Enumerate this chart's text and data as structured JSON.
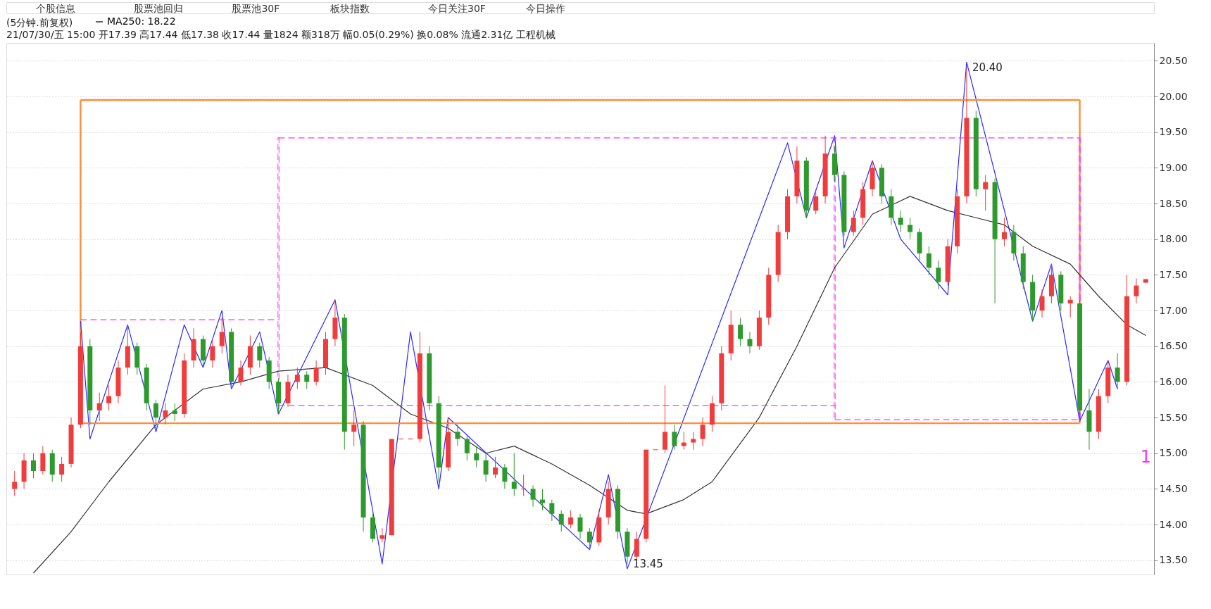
{
  "chart_data": {
    "type": "candlestick",
    "title": "(5分钟.前复权)",
    "subtitle": "21/07/30/五 15:00 开17.39 高17.44 低17.38 收17.44 量1824 额318万 幅0.05(0.29%) 换0.08% 流通2.31亿 工程机械",
    "annotations": [
      "个股信息",
      "股票池回归",
      "股票池30F",
      "板块指数",
      "今日关注30F",
      "今日操作",
      "20.40",
      "13.45",
      "1"
    ],
    "categories": [
      null,
      null,
      null,
      null,
      null,
      null,
      null,
      null,
      null,
      null,
      null,
      null,
      null,
      null,
      null,
      null,
      null,
      null,
      null,
      null,
      null,
      null,
      null,
      null,
      null,
      null,
      null,
      null,
      null,
      null,
      null,
      null,
      null,
      null,
      null,
      null,
      null,
      null,
      null,
      null,
      null,
      null,
      null,
      null,
      null,
      null,
      null,
      null,
      null,
      null,
      null,
      null,
      null,
      null,
      null,
      null,
      null,
      null,
      null,
      null,
      null,
      null,
      null,
      null,
      null,
      null,
      null,
      null,
      null,
      null,
      null,
      null,
      null,
      null,
      null,
      null,
      null,
      null,
      null,
      null,
      null,
      null,
      null,
      null,
      null,
      null,
      null,
      null,
      null,
      null,
      null,
      null,
      null,
      null,
      null,
      null,
      null,
      null,
      null,
      null,
      null,
      null,
      null,
      null,
      null,
      null,
      null,
      null,
      null,
      null,
      null,
      null,
      null,
      null,
      null,
      null,
      null,
      null,
      null,
      null,
      null
    ],
    "ohlc": [
      [
        14.5,
        14.75,
        14.4,
        14.6
      ],
      [
        14.6,
        15.0,
        14.5,
        14.9
      ],
      [
        14.9,
        15.0,
        14.65,
        14.75
      ],
      [
        14.75,
        15.1,
        14.7,
        15.0
      ],
      [
        15.0,
        15.05,
        14.6,
        14.7
      ],
      [
        14.7,
        14.95,
        14.6,
        14.85
      ],
      [
        14.85,
        15.5,
        14.8,
        15.4
      ],
      [
        15.4,
        16.7,
        15.35,
        16.5
      ],
      [
        16.5,
        16.6,
        15.4,
        15.6
      ],
      [
        15.6,
        15.85,
        15.45,
        15.7
      ],
      [
        15.7,
        15.95,
        15.6,
        15.8
      ],
      [
        15.8,
        16.3,
        15.7,
        16.2
      ],
      [
        16.2,
        16.8,
        16.1,
        16.5
      ],
      [
        16.5,
        16.55,
        16.1,
        16.2
      ],
      [
        16.2,
        16.25,
        15.6,
        15.7
      ],
      [
        15.7,
        15.75,
        15.35,
        15.5
      ],
      [
        15.5,
        15.7,
        15.4,
        15.6
      ],
      [
        15.6,
        15.7,
        15.45,
        15.55
      ],
      [
        15.55,
        16.4,
        15.5,
        16.3
      ],
      [
        16.3,
        16.75,
        16.2,
        16.6
      ],
      [
        16.6,
        16.65,
        16.2,
        16.3
      ],
      [
        16.3,
        16.6,
        16.2,
        16.5
      ],
      [
        16.5,
        16.9,
        16.4,
        16.7
      ],
      [
        16.7,
        16.75,
        15.9,
        16.0
      ],
      [
        16.0,
        16.3,
        15.95,
        16.2
      ],
      [
        16.2,
        16.65,
        16.1,
        16.5
      ],
      [
        16.5,
        16.55,
        16.2,
        16.3
      ],
      [
        16.3,
        16.35,
        15.9,
        16.0
      ],
      [
        16.0,
        16.05,
        15.55,
        15.7
      ],
      [
        15.7,
        16.1,
        15.65,
        16.0
      ],
      [
        16.0,
        16.2,
        15.9,
        16.1
      ],
      [
        16.1,
        16.15,
        15.9,
        16.0
      ],
      [
        16.0,
        16.3,
        15.95,
        16.2
      ],
      [
        16.2,
        16.7,
        16.1,
        16.6
      ],
      [
        16.6,
        17.15,
        16.5,
        16.9
      ],
      [
        16.9,
        16.95,
        15.05,
        15.3
      ],
      [
        15.3,
        15.6,
        15.1,
        15.4
      ],
      [
        15.4,
        15.45,
        13.9,
        14.1
      ],
      [
        14.1,
        14.15,
        13.75,
        13.8
      ],
      [
        13.8,
        13.95,
        13.75,
        13.85
      ],
      [
        13.85,
        15.2,
        13.85,
        15.2
      ],
      [
        15.2,
        15.2,
        15.2,
        15.2
      ],
      [
        15.2,
        15.2,
        15.2,
        15.2
      ],
      [
        15.2,
        16.7,
        15.15,
        16.4
      ],
      [
        16.4,
        16.5,
        15.6,
        15.7
      ],
      [
        15.7,
        15.8,
        14.6,
        14.8
      ],
      [
        14.8,
        15.5,
        14.75,
        15.3
      ],
      [
        15.3,
        15.4,
        15.1,
        15.2
      ],
      [
        15.2,
        15.25,
        14.9,
        15.0
      ],
      [
        15.0,
        15.1,
        14.8,
        14.9
      ],
      [
        14.9,
        15.0,
        14.6,
        14.7
      ],
      [
        14.7,
        14.95,
        14.65,
        14.8
      ],
      [
        14.8,
        14.85,
        14.5,
        14.6
      ],
      [
        14.6,
        15.0,
        14.4,
        14.5
      ],
      [
        14.5,
        14.7,
        14.4,
        14.5
      ],
      [
        14.5,
        14.55,
        14.25,
        14.35
      ],
      [
        14.35,
        14.5,
        14.2,
        14.3
      ],
      [
        14.3,
        14.35,
        14.05,
        14.15
      ],
      [
        14.15,
        14.2,
        13.9,
        14.0
      ],
      [
        14.0,
        14.2,
        13.95,
        14.1
      ],
      [
        14.1,
        14.15,
        13.8,
        13.9
      ],
      [
        13.9,
        13.95,
        13.65,
        13.75
      ],
      [
        13.75,
        14.2,
        13.7,
        14.1
      ],
      [
        14.1,
        14.6,
        14.0,
        14.5
      ],
      [
        14.5,
        14.55,
        13.8,
        13.9
      ],
      [
        13.9,
        13.95,
        13.45,
        13.55
      ],
      [
        13.55,
        13.9,
        13.5,
        13.8
      ],
      [
        13.8,
        15.05,
        13.75,
        15.05
      ],
      [
        15.05,
        15.05,
        15.05,
        15.05
      ],
      [
        15.05,
        15.95,
        15.0,
        15.3
      ],
      [
        15.3,
        15.4,
        15.05,
        15.1
      ],
      [
        15.1,
        15.3,
        15.05,
        15.15
      ],
      [
        15.15,
        15.3,
        15.05,
        15.2
      ],
      [
        15.2,
        15.5,
        15.1,
        15.4
      ],
      [
        15.4,
        15.8,
        15.3,
        15.7
      ],
      [
        15.7,
        16.5,
        15.6,
        16.4
      ],
      [
        16.4,
        17.0,
        16.3,
        16.8
      ],
      [
        16.8,
        16.9,
        16.5,
        16.6
      ],
      [
        16.6,
        16.7,
        16.4,
        16.5
      ],
      [
        16.5,
        17.0,
        16.45,
        16.9
      ],
      [
        16.9,
        17.6,
        16.8,
        17.5
      ],
      [
        17.5,
        18.2,
        17.4,
        18.1
      ],
      [
        18.1,
        18.7,
        18.0,
        18.6
      ],
      [
        18.6,
        19.3,
        18.5,
        19.1
      ],
      [
        19.1,
        19.15,
        18.3,
        18.4
      ],
      [
        18.4,
        18.7,
        18.35,
        18.6
      ],
      [
        18.6,
        19.45,
        18.5,
        19.2
      ],
      [
        19.2,
        19.3,
        18.8,
        18.9
      ],
      [
        18.9,
        18.95,
        18.05,
        18.1
      ],
      [
        18.1,
        18.4,
        18.05,
        18.3
      ],
      [
        18.3,
        18.8,
        18.2,
        18.7
      ],
      [
        18.7,
        19.1,
        18.6,
        19.0
      ],
      [
        19.0,
        19.05,
        18.5,
        18.6
      ],
      [
        18.6,
        18.7,
        18.2,
        18.3
      ],
      [
        18.3,
        18.4,
        18.1,
        18.2
      ],
      [
        18.2,
        18.3,
        18.0,
        18.1
      ],
      [
        18.1,
        18.15,
        17.7,
        17.8
      ],
      [
        17.8,
        17.9,
        17.5,
        17.6
      ],
      [
        17.6,
        17.7,
        17.3,
        17.4
      ],
      [
        17.4,
        18.0,
        17.35,
        17.9
      ],
      [
        17.9,
        18.7,
        17.8,
        18.6
      ],
      [
        18.6,
        20.4,
        18.5,
        19.7
      ],
      [
        19.7,
        19.8,
        18.6,
        18.7
      ],
      [
        18.7,
        18.9,
        18.4,
        18.8
      ],
      [
        18.8,
        18.85,
        17.1,
        18.0
      ],
      [
        18.0,
        18.3,
        17.9,
        18.1
      ],
      [
        18.1,
        18.2,
        17.7,
        17.8
      ],
      [
        17.8,
        17.9,
        17.3,
        17.4
      ],
      [
        17.4,
        17.5,
        16.85,
        17.0
      ],
      [
        17.0,
        17.3,
        16.9,
        17.2
      ],
      [
        17.2,
        17.65,
        17.1,
        17.5
      ],
      [
        17.5,
        17.55,
        17.0,
        17.1
      ],
      [
        17.1,
        17.2,
        16.9,
        17.15
      ],
      [
        17.1,
        17.15,
        15.45,
        15.6
      ],
      [
        15.6,
        15.9,
        15.05,
        15.3
      ],
      [
        15.3,
        15.9,
        15.2,
        15.8
      ],
      [
        15.8,
        16.3,
        15.7,
        16.2
      ],
      [
        16.2,
        16.4,
        15.9,
        16.0
      ],
      [
        16.0,
        17.5,
        15.95,
        17.2
      ],
      [
        17.2,
        17.45,
        17.1,
        17.35
      ],
      [
        17.39,
        17.44,
        17.38,
        17.44
      ]
    ],
    "series": [
      {
        "name": "MA250: 18.22",
        "type": "line",
        "color": "#333333",
        "values": [
          null,
          null,
          13.32,
          null,
          null,
          null,
          13.9,
          null,
          null,
          null,
          14.6,
          null,
          null,
          null,
          null,
          15.4,
          null,
          null,
          null,
          null,
          15.9,
          null,
          null,
          null,
          16.0,
          null,
          null,
          null,
          16.15,
          null,
          null,
          null,
          null,
          16.2,
          null,
          null,
          null,
          null,
          15.95,
          null,
          null,
          null,
          15.55,
          null,
          null,
          null,
          15.35,
          null,
          null,
          null,
          15.0,
          null,
          null,
          15.1,
          null,
          null,
          null,
          14.85,
          null,
          null,
          null,
          14.55,
          null,
          null,
          null,
          14.2,
          null,
          14.15,
          null,
          null,
          null,
          14.35,
          null,
          null,
          14.6,
          null,
          null,
          null,
          null,
          15.5,
          null,
          null,
          null,
          16.5,
          null,
          null,
          null,
          17.6,
          null,
          null,
          null,
          18.35,
          null,
          null,
          null,
          18.6,
          null,
          null,
          null,
          18.4,
          null,
          null,
          18.3,
          null,
          null,
          18.2,
          null,
          null,
          17.9,
          null,
          null,
          null,
          17.65,
          null,
          null,
          17.2,
          null,
          null,
          16.8,
          null,
          16.65
        ]
      },
      {
        "type": "line",
        "color": "#2a2aff",
        "values": [
          null,
          null,
          null,
          null,
          null,
          null,
          null,
          16.85,
          15.2,
          null,
          null,
          null,
          16.8,
          null,
          null,
          15.3,
          null,
          null,
          16.8,
          null,
          16.2,
          null,
          17.0,
          15.9,
          null,
          null,
          16.7,
          null,
          15.55,
          null,
          null,
          null,
          null,
          null,
          17.15,
          null,
          null,
          null,
          null,
          13.45,
          null,
          null,
          16.7,
          null,
          null,
          14.5,
          15.5,
          null,
          null,
          null,
          null,
          null,
          null,
          null,
          null,
          null,
          null,
          null,
          null,
          null,
          null,
          13.65,
          null,
          14.7,
          null,
          13.38,
          null,
          null,
          null,
          null,
          null,
          null,
          null,
          null,
          null,
          null,
          null,
          null,
          null,
          null,
          null,
          null,
          19.35,
          null,
          18.3,
          null,
          null,
          19.45,
          17.88,
          null,
          null,
          19.1,
          null,
          null,
          18.0,
          null,
          null,
          null,
          null,
          17.22,
          null,
          20.48,
          null,
          null,
          null,
          null,
          null,
          null,
          16.85,
          null,
          17.65,
          null,
          null,
          15.45,
          null,
          null,
          16.3,
          15.9,
          null,
          null,
          null
        ]
      },
      {
        "type": "line",
        "color": "#ff8c3a",
        "values": [
          null,
          null,
          null,
          null,
          null,
          null,
          null,
          19.95,
          null,
          null,
          null,
          null,
          null,
          null,
          null,
          null,
          null,
          null,
          null,
          null,
          null,
          null,
          null,
          null,
          null,
          null,
          null,
          null,
          null,
          null,
          null,
          null,
          null,
          null,
          null,
          null,
          null,
          null,
          null,
          null,
          null,
          null,
          null,
          null,
          null,
          null,
          null,
          null,
          null,
          null,
          null,
          null,
          null,
          null,
          null,
          null,
          null,
          null,
          null,
          null,
          null,
          null,
          null,
          null,
          null,
          null,
          null,
          null,
          null,
          null,
          null,
          null,
          null,
          null,
          null,
          null,
          null,
          null,
          null,
          null,
          null,
          null,
          null,
          null,
          null,
          null,
          null,
          null,
          null,
          null,
          null,
          null,
          null,
          null,
          null,
          null,
          null,
          null,
          null,
          null,
          null,
          null,
          null,
          null,
          null,
          null,
          null,
          null,
          null,
          null,
          null,
          null,
          null,
          19.95,
          null,
          null,
          null,
          null,
          null,
          null,
          null
        ]
      },
      {
        "type": "line",
        "color": "#ff8c3a",
        "values": [
          null,
          null,
          null,
          null,
          null,
          null,
          null,
          15.42,
          null,
          null,
          null,
          null,
          null,
          null,
          null,
          null,
          null,
          null,
          null,
          null,
          null,
          null,
          null,
          null,
          null,
          null,
          null,
          null,
          null,
          null,
          null,
          null,
          null,
          null,
          null,
          null,
          null,
          null,
          null,
          null,
          null,
          null,
          null,
          null,
          null,
          null,
          null,
          null,
          null,
          null,
          null,
          null,
          null,
          null,
          null,
          null,
          null,
          null,
          null,
          null,
          null,
          null,
          null,
          null,
          null,
          null,
          null,
          null,
          null,
          null,
          null,
          null,
          null,
          null,
          null,
          null,
          null,
          null,
          null,
          null,
          null,
          null,
          null,
          null,
          null,
          null,
          null,
          null,
          null,
          null,
          null,
          null,
          null,
          null,
          null,
          null,
          null,
          null,
          null,
          null,
          null,
          null,
          null,
          null,
          null,
          null,
          null,
          null,
          null,
          null,
          null,
          null,
          null,
          15.42,
          null,
          null,
          null,
          null,
          null,
          null,
          null
        ]
      },
      {
        "type": "bar",
        "color": "#ff8c3a",
        "base": [
          null,
          null,
          null,
          null,
          null,
          null,
          null,
          15.42,
          null,
          null,
          null,
          null,
          null,
          null,
          null,
          null,
          null,
          null,
          null,
          null,
          null,
          null,
          null,
          null,
          null,
          null,
          null,
          null,
          null,
          null,
          null,
          null,
          null,
          null,
          null,
          null,
          null,
          null,
          null,
          null,
          null,
          null,
          null,
          null,
          null,
          null,
          null,
          null,
          null,
          null,
          null,
          null,
          null,
          null,
          null,
          null,
          null,
          null,
          null,
          null,
          null,
          null,
          null,
          null,
          null,
          null,
          null,
          null,
          null,
          null,
          null,
          null,
          null,
          null,
          null,
          null,
          null,
          null,
          null,
          null,
          null,
          null,
          null,
          null,
          null,
          null,
          null,
          null,
          null,
          null,
          null,
          null,
          null,
          null,
          null,
          null,
          null,
          null,
          null,
          null,
          null,
          null,
          null,
          null,
          null,
          null,
          null,
          null,
          null,
          null,
          null,
          null,
          null,
          15.42,
          null,
          null,
          null,
          null,
          null,
          null,
          null
        ],
        "values": [
          null,
          null,
          null,
          null,
          null,
          null,
          null,
          4.53,
          null,
          null,
          null,
          null,
          null,
          null,
          null,
          null,
          null,
          null,
          null,
          null,
          null,
          null,
          null,
          null,
          null,
          null,
          null,
          null,
          null,
          null,
          null,
          null,
          null,
          null,
          null,
          null,
          null,
          null,
          null,
          null,
          null,
          null,
          null,
          null,
          null,
          null,
          null,
          null,
          null,
          null,
          null,
          null,
          null,
          null,
          null,
          null,
          null,
          null,
          null,
          null,
          null,
          null,
          null,
          null,
          null,
          null,
          null,
          null,
          null,
          null,
          null,
          null,
          null,
          null,
          null,
          null,
          null,
          null,
          null,
          null,
          null,
          null,
          null,
          null,
          null,
          null,
          null,
          null,
          null,
          null,
          null,
          null,
          null,
          null,
          null,
          null,
          null,
          null,
          null,
          null,
          null,
          null,
          null,
          null,
          null,
          null,
          null,
          null,
          null,
          null,
          null,
          null,
          null,
          4.53,
          null,
          null,
          null,
          null,
          null,
          null,
          null
        ]
      },
      {
        "type": "line",
        "color": "#ff33ff",
        "line_style": "dashed",
        "values": [
          null,
          null,
          null,
          null,
          null,
          null,
          null,
          16.87,
          null,
          null,
          null,
          null,
          null,
          null,
          null,
          null,
          null,
          null,
          null,
          null,
          null,
          null,
          null,
          null,
          null,
          null,
          null,
          null,
          16.87,
          null,
          null,
          null,
          null,
          null,
          null,
          null,
          null,
          null,
          null,
          null,
          null,
          null,
          null,
          null,
          null,
          null,
          null,
          null,
          null,
          null,
          null,
          null,
          null,
          null,
          null,
          null,
          null,
          null,
          null,
          null,
          null,
          null,
          null,
          null,
          null,
          null,
          null,
          null,
          null,
          null,
          null,
          null,
          null,
          null,
          null,
          null,
          null,
          null,
          null,
          null,
          null,
          null,
          null,
          null,
          null,
          null,
          null,
          null,
          null,
          null,
          null,
          null,
          null,
          null,
          null,
          null,
          null,
          null,
          null,
          null,
          null,
          null,
          null,
          null,
          null,
          null,
          null,
          null,
          null,
          null,
          null,
          null,
          null,
          null,
          null,
          null,
          null,
          null,
          null,
          null,
          null
        ]
      },
      {
        "type": "line",
        "color": "#ff33ff",
        "line_style": "dashed",
        "values": [
          null,
          null,
          null,
          null,
          null,
          null,
          null,
          null,
          null,
          null,
          null,
          null,
          null,
          null,
          null,
          null,
          null,
          null,
          null,
          null,
          null,
          null,
          null,
          null,
          null,
          null,
          null,
          null,
          19.42,
          null,
          null,
          null,
          null,
          null,
          null,
          null,
          null,
          null,
          null,
          null,
          null,
          null,
          null,
          null,
          null,
          null,
          null,
          null,
          null,
          null,
          null,
          null,
          null,
          null,
          null,
          null,
          null,
          null,
          null,
          null,
          null,
          null,
          null,
          null,
          null,
          null,
          null,
          null,
          null,
          null,
          null,
          null,
          null,
          null,
          null,
          null,
          null,
          null,
          null,
          null,
          null,
          null,
          null,
          null,
          null,
          null,
          null,
          null,
          null,
          null,
          null,
          null,
          null,
          null,
          null,
          null,
          null,
          null,
          null,
          null,
          null,
          null,
          null,
          null,
          null,
          null,
          null,
          null,
          null,
          null,
          null,
          null,
          null,
          19.42,
          null,
          null,
          null,
          null,
          null,
          null,
          null
        ]
      },
      {
        "type": "line",
        "color": "#ff33ff",
        "line_style": "dashed",
        "values": [
          null,
          null,
          null,
          null,
          null,
          null,
          null,
          null,
          null,
          null,
          null,
          null,
          null,
          null,
          null,
          null,
          null,
          null,
          null,
          null,
          null,
          null,
          null,
          null,
          null,
          null,
          null,
          null,
          15.67,
          null,
          null,
          null,
          null,
          null,
          null,
          null,
          null,
          null,
          null,
          null,
          null,
          null,
          null,
          null,
          null,
          null,
          null,
          null,
          null,
          null,
          null,
          null,
          null,
          null,
          null,
          null,
          null,
          null,
          null,
          null,
          null,
          null,
          null,
          null,
          null,
          null,
          null,
          null,
          null,
          null,
          null,
          null,
          null,
          null,
          null,
          null,
          null,
          null,
          null,
          null,
          null,
          null,
          null,
          null,
          null,
          null,
          null,
          15.67,
          null,
          null,
          null,
          null,
          null,
          null,
          null,
          null,
          null,
          null,
          null,
          null,
          null,
          null,
          null,
          null,
          null,
          null,
          null,
          null,
          null,
          null,
          null,
          null,
          null,
          null,
          null,
          null,
          null,
          null,
          null,
          null,
          null
        ]
      },
      {
        "type": "line",
        "color": "#ff33ff",
        "line_style": "dashed",
        "values": [
          null,
          null,
          null,
          null,
          null,
          null,
          null,
          null,
          null,
          null,
          null,
          null,
          null,
          null,
          null,
          null,
          null,
          null,
          null,
          null,
          null,
          null,
          null,
          null,
          null,
          null,
          null,
          null,
          null,
          null,
          null,
          null,
          null,
          null,
          null,
          null,
          null,
          null,
          null,
          null,
          null,
          null,
          null,
          null,
          null,
          null,
          null,
          null,
          null,
          null,
          null,
          null,
          null,
          null,
          null,
          null,
          null,
          null,
          null,
          null,
          null,
          null,
          null,
          null,
          null,
          null,
          null,
          null,
          null,
          null,
          null,
          null,
          null,
          null,
          null,
          null,
          null,
          null,
          null,
          null,
          null,
          null,
          null,
          null,
          null,
          null,
          null,
          15.47,
          null,
          null,
          null,
          null,
          null,
          null,
          null,
          null,
          null,
          null,
          null,
          null,
          null,
          null,
          null,
          null,
          null,
          null,
          null,
          null,
          null,
          null,
          null,
          null,
          null,
          15.47,
          null,
          null,
          null,
          null,
          null,
          null,
          null
        ]
      },
      {
        "type": "bar",
        "color": "#ff33ff",
        "line_style": "dashed",
        "base": [
          null,
          null,
          null,
          null,
          null,
          null,
          null,
          null,
          null,
          null,
          null,
          null,
          null,
          null,
          null,
          null,
          null,
          null,
          null,
          null,
          null,
          null,
          null,
          null,
          null,
          null,
          null,
          null,
          15.55,
          null,
          null,
          null,
          null,
          null,
          null,
          null,
          null,
          null,
          null,
          null,
          null,
          null,
          null,
          null,
          null,
          null,
          null,
          null,
          null,
          null,
          null,
          null,
          null,
          null,
          null,
          null,
          null,
          null,
          null,
          null,
          null,
          null,
          null,
          null,
          null,
          null,
          null,
          null,
          null,
          null,
          null,
          null,
          null,
          null,
          null,
          null,
          null,
          null,
          null,
          null,
          null,
          null,
          null,
          null,
          null,
          null,
          null,
          15.47,
          null,
          null,
          null,
          null,
          null,
          null,
          null,
          null,
          null,
          null,
          null,
          null,
          null,
          null,
          null,
          null,
          null,
          null,
          null,
          null,
          null,
          null,
          null,
          null,
          null,
          15.47,
          null,
          null,
          null,
          null,
          null,
          null,
          null
        ],
        "values": [
          null,
          null,
          null,
          null,
          null,
          null,
          null,
          null,
          null,
          null,
          null,
          null,
          null,
          null,
          null,
          null,
          null,
          null,
          null,
          null,
          null,
          null,
          null,
          null,
          null,
          null,
          null,
          null,
          3.87,
          null,
          null,
          null,
          null,
          null,
          null,
          null,
          null,
          null,
          null,
          null,
          null,
          null,
          null,
          null,
          null,
          null,
          null,
          null,
          null,
          null,
          null,
          null,
          null,
          null,
          null,
          null,
          null,
          null,
          null,
          null,
          null,
          null,
          null,
          null,
          null,
          null,
          null,
          null,
          null,
          null,
          null,
          null,
          null,
          null,
          null,
          null,
          null,
          null,
          null,
          null,
          null,
          null,
          null,
          null,
          null,
          null,
          null,
          3.95,
          null,
          null,
          null,
          null,
          null,
          null,
          null,
          null,
          null,
          null,
          null,
          null,
          null,
          null,
          null,
          null,
          null,
          null,
          null,
          null,
          null,
          null,
          null,
          null,
          null,
          3.95,
          null,
          null,
          null,
          null,
          null,
          null,
          null
        ]
      }
    ],
    "ylim": [
      13.3,
      20.75
    ],
    "yticks": [
      {
        "value": 13.5,
        "label": "13.50"
      },
      {
        "value": 14.0,
        "label": "14.00"
      },
      {
        "value": 14.5,
        "label": "14.50"
      },
      {
        "value": 15.0,
        "label": "15.00"
      },
      {
        "value": 15.5,
        "label": "15.50"
      },
      {
        "value": 16.0,
        "label": "16.00"
      },
      {
        "value": 16.5,
        "label": "16.50"
      },
      {
        "value": 17.0,
        "label": "17.00"
      },
      {
        "value": 17.5,
        "label": "17.50"
      },
      {
        "value": 18.0,
        "label": "18.00"
      },
      {
        "value": 18.5,
        "label": "18.50"
      },
      {
        "value": 19.0,
        "label": "19.00"
      },
      {
        "value": 19.5,
        "label": "19.50"
      },
      {
        "value": 20.0,
        "label": "20.00"
      },
      {
        "value": 20.5,
        "label": "20.50"
      }
    ],
    "grid": "y",
    "legend": "top left",
    "tick_labels": "y"
  }
}
